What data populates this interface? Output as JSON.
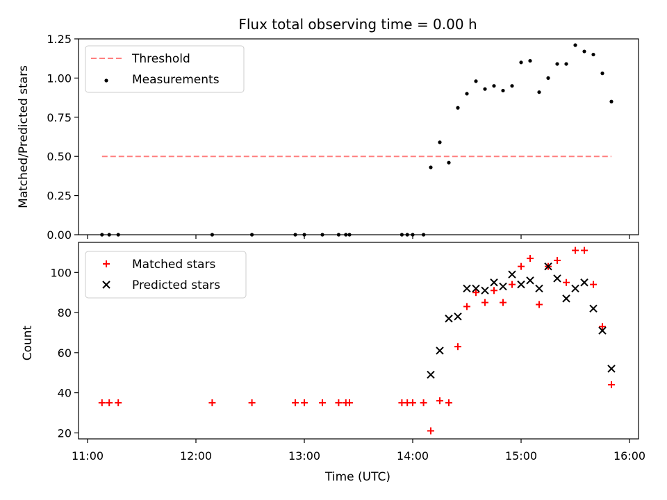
{
  "figure": {
    "title": "Flux total observing time = 0.00 h"
  },
  "chart_data": [
    {
      "type": "scatter",
      "panel": "top",
      "title": "Flux total observing time = 0.00 h",
      "xlabel": "",
      "ylabel": "Matched/Predicted stars",
      "xlim": [
        "10:55",
        "16:05"
      ],
      "ylim": [
        0,
        1.25
      ],
      "yticks": [
        0.0,
        0.25,
        0.5,
        0.75,
        1.0,
        1.25
      ],
      "ytick_labels": [
        "0.00",
        "0.25",
        "0.50",
        "0.75",
        "1.00",
        "1.25"
      ],
      "legend_position": "top-left",
      "grid": false,
      "series": [
        {
          "name": "Threshold",
          "kind": "line",
          "style": "dashed",
          "color": "#ff7f7f",
          "x": [
            "11:08",
            "15:50"
          ],
          "y": [
            0.5,
            0.5
          ]
        },
        {
          "name": "Measurements",
          "kind": "scatter",
          "marker": "dot",
          "color": "#000000",
          "x": [
            "11:08",
            "11:12",
            "11:17",
            "12:09",
            "12:31",
            "12:55",
            "13:00",
            "13:10",
            "13:19",
            "13:23",
            "13:25",
            "13:54",
            "13:57",
            "14:00",
            "14:06",
            "14:10",
            "14:15",
            "14:20",
            "14:25",
            "14:30",
            "14:35",
            "14:40",
            "14:45",
            "14:50",
            "14:55",
            "15:00",
            "15:05",
            "15:10",
            "15:15",
            "15:20",
            "15:25",
            "15:30",
            "15:35",
            "15:40",
            "15:45",
            "15:50"
          ],
          "y": [
            0,
            0,
            0,
            0,
            0,
            0,
            0,
            0,
            0,
            0,
            0,
            0,
            0,
            0,
            0,
            0.43,
            0.59,
            0.46,
            0.81,
            0.9,
            0.98,
            0.93,
            0.95,
            0.92,
            0.95,
            1.1,
            1.11,
            0.91,
            1.0,
            1.09,
            1.09,
            1.21,
            1.17,
            1.15,
            1.03,
            0.85
          ]
        }
      ]
    },
    {
      "type": "scatter",
      "panel": "bottom",
      "xlabel": "Time (UTC)",
      "ylabel": "Count",
      "xlim": [
        "10:55",
        "16:05"
      ],
      "ylim": [
        17,
        115
      ],
      "xticks": [
        "11:00",
        "12:00",
        "13:00",
        "14:00",
        "15:00",
        "16:00"
      ],
      "yticks": [
        20,
        40,
        60,
        80,
        100
      ],
      "ytick_labels": [
        "20",
        "40",
        "60",
        "80",
        "100"
      ],
      "legend_position": "top-left",
      "grid": false,
      "series": [
        {
          "name": "Matched stars",
          "kind": "scatter",
          "marker": "plus",
          "color": "#ff0000",
          "x": [
            "11:08",
            "11:12",
            "11:17",
            "12:09",
            "12:31",
            "12:55",
            "13:00",
            "13:10",
            "13:19",
            "13:23",
            "13:25",
            "13:54",
            "13:57",
            "14:00",
            "14:06",
            "14:10",
            "14:15",
            "14:20",
            "14:25",
            "14:30",
            "14:35",
            "14:40",
            "14:45",
            "14:50",
            "14:55",
            "15:00",
            "15:05",
            "15:10",
            "15:15",
            "15:20",
            "15:25",
            "15:30",
            "15:35",
            "15:40",
            "15:45",
            "15:50"
          ],
          "y": [
            35,
            35,
            35,
            35,
            35,
            35,
            35,
            35,
            35,
            35,
            35,
            35,
            35,
            35,
            35,
            21,
            36,
            35,
            63,
            83,
            90,
            85,
            91,
            85,
            94,
            103,
            107,
            84,
            103,
            106,
            95,
            111,
            111,
            94,
            73,
            44
          ]
        },
        {
          "name": "Predicted stars",
          "kind": "scatter",
          "marker": "x",
          "color": "#000000",
          "x": [
            "14:10",
            "14:15",
            "14:20",
            "14:25",
            "14:30",
            "14:35",
            "14:40",
            "14:45",
            "14:50",
            "14:55",
            "15:00",
            "15:05",
            "15:10",
            "15:15",
            "15:20",
            "15:25",
            "15:30",
            "15:35",
            "15:40",
            "15:45",
            "15:50"
          ],
          "y": [
            49,
            61,
            77,
            78,
            92,
            92,
            91,
            95,
            93,
            99,
            94,
            96,
            92,
            103,
            97,
            87,
            92,
            95,
            82,
            71,
            52
          ]
        }
      ]
    }
  ]
}
